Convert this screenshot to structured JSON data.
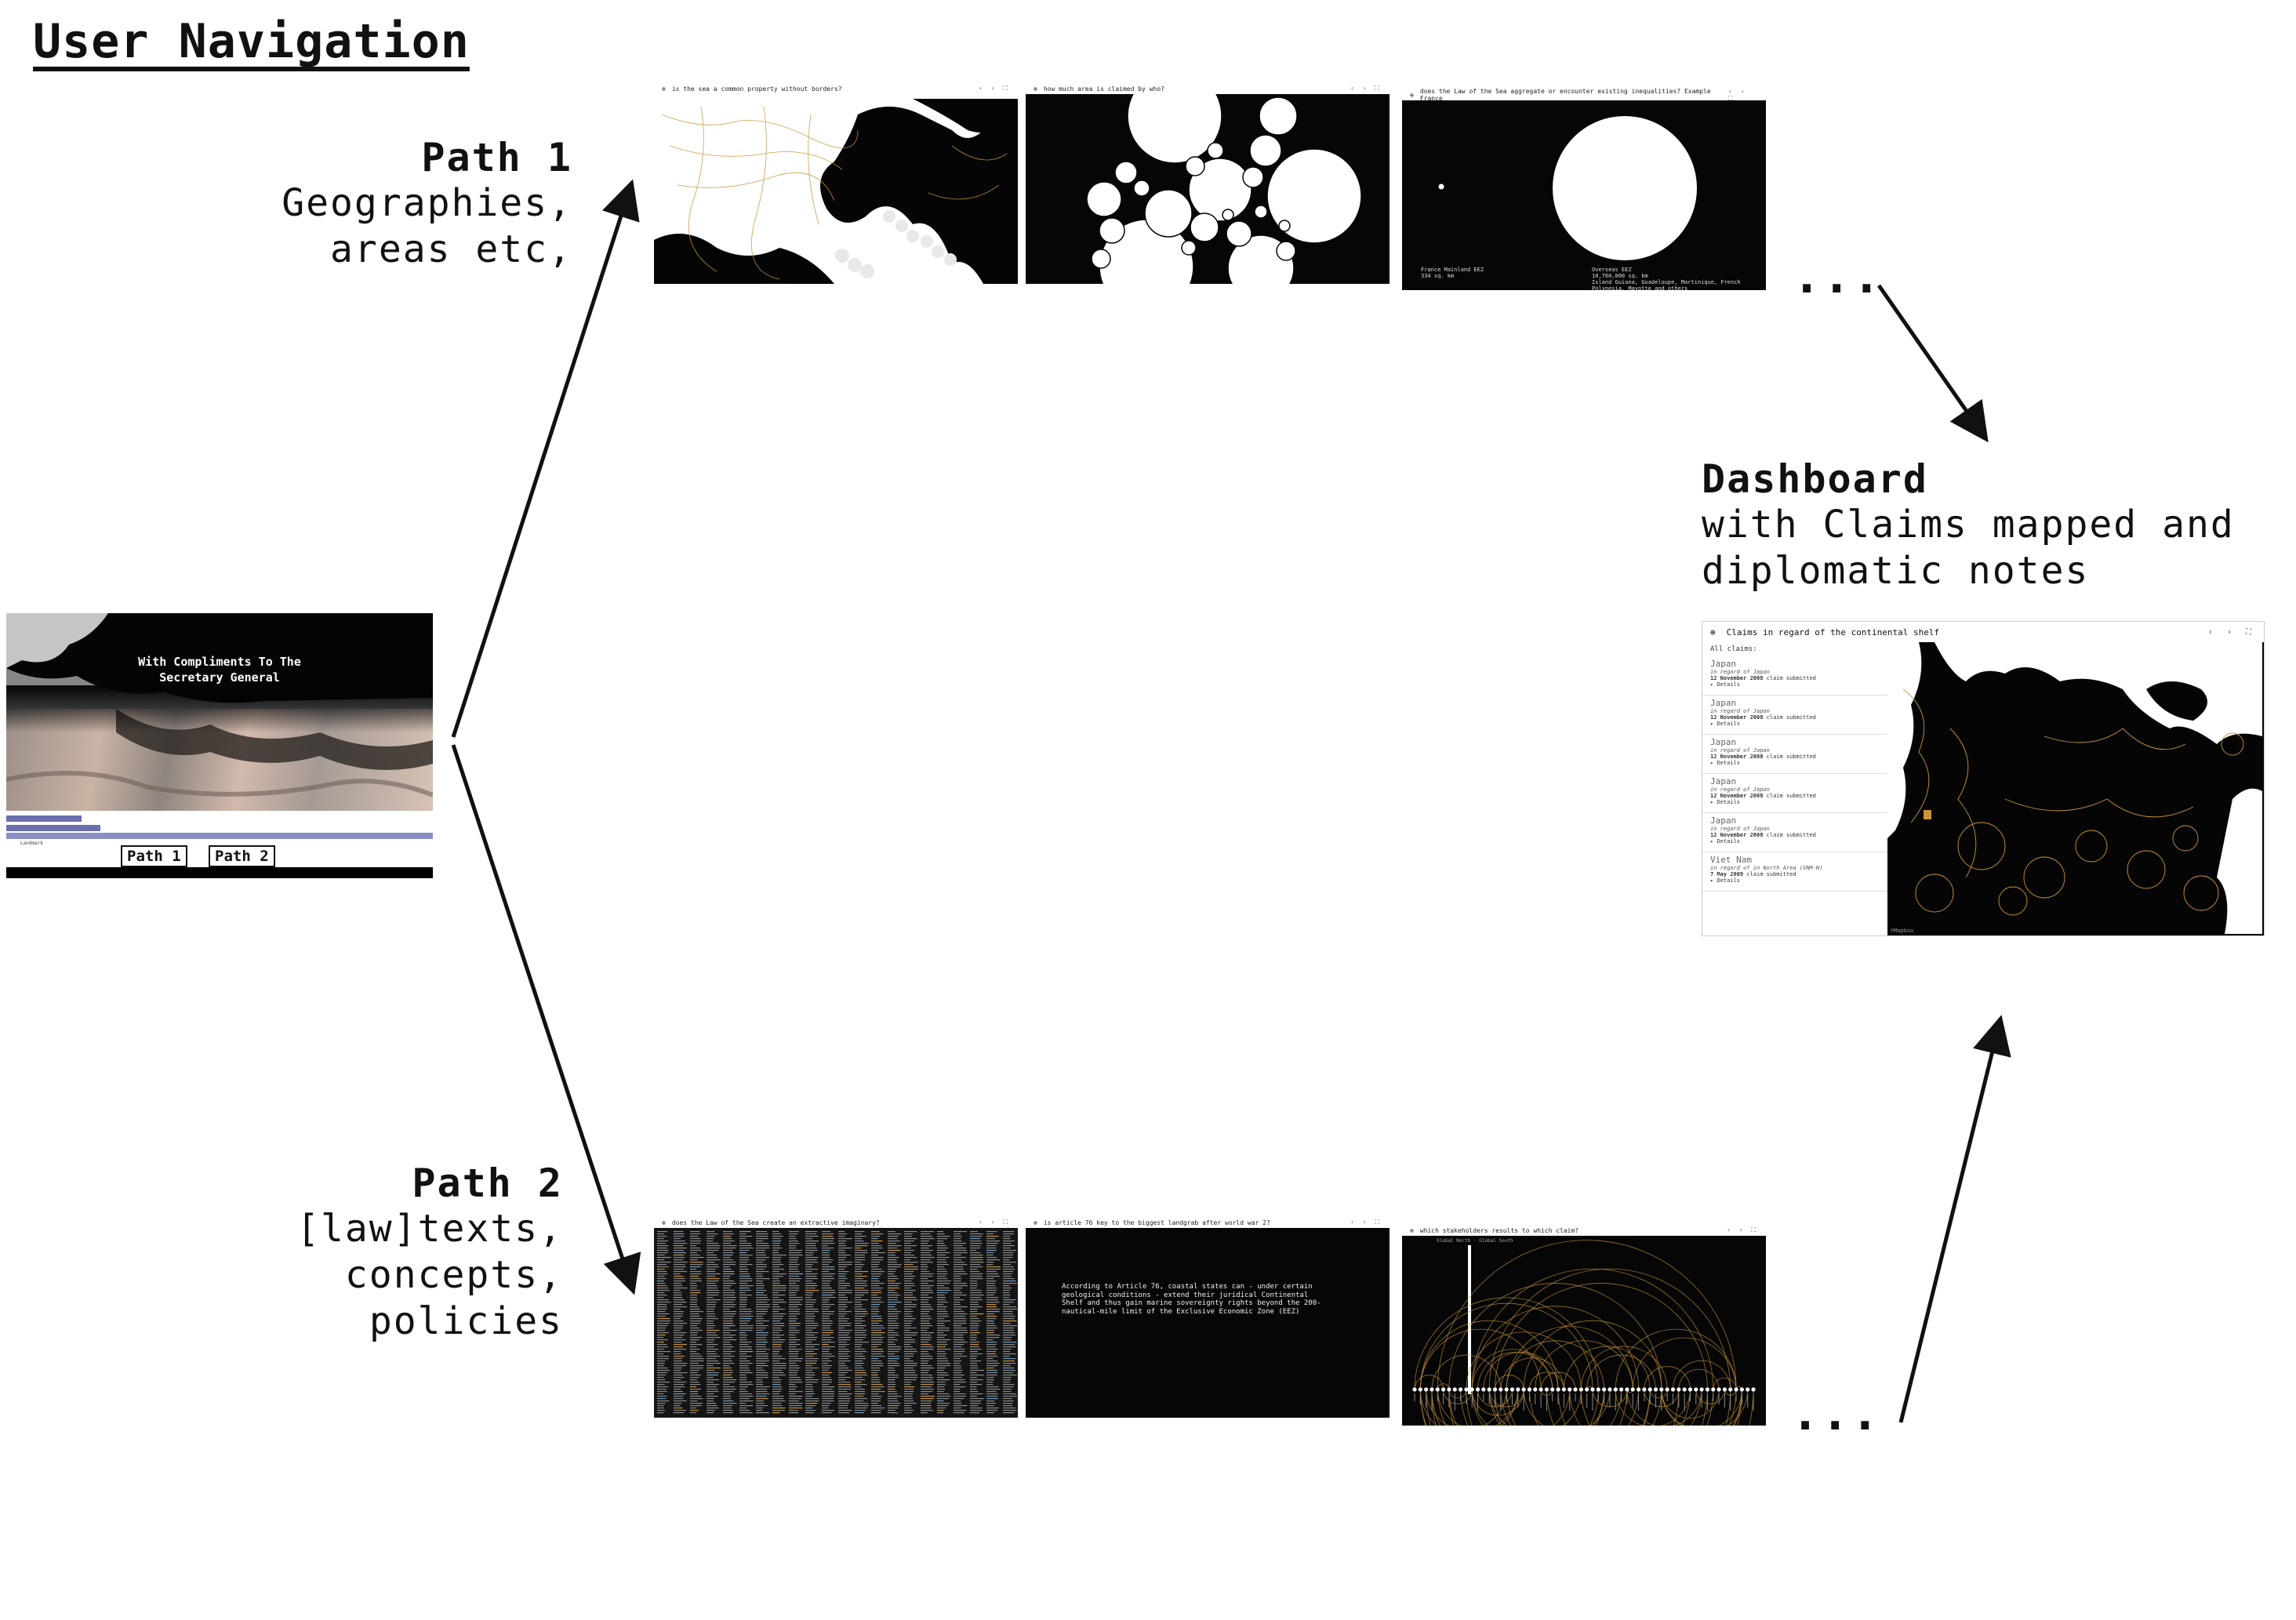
{
  "title": "User Navigation",
  "path1": {
    "heading": "Path 1",
    "description": "Geographies,\nareas etc,"
  },
  "path2": {
    "heading": "Path 2",
    "description": "[law]texts,\nconcepts,\npolicies"
  },
  "dashboard_label": {
    "heading": "Dashboard",
    "description": "with Claims mapped and\ndiplomatic notes"
  },
  "ellipsis": "...",
  "landing": {
    "title": "With Compliments To The\nSecretary General",
    "btn_path1": "Path 1",
    "btn_path2": "Path 2",
    "small_text": "Landmark"
  },
  "screens_path1": [
    {
      "caption": "is the sea a common property without borders?"
    },
    {
      "caption": "how much area is claimed by who?"
    },
    {
      "caption": "does the Law of the Sea aggregate or encounter existing inequalities? Example France",
      "left_stat": "France Mainland EEZ\n334 sq. km",
      "right_stat": "Overseas EEZ\n10,760,000 sq. km\nIsland Guiana, Guadeloupe, Martinique, French\nPolynesia, Mayotte and others"
    }
  ],
  "screens_path2": [
    {
      "caption": "does the Law of the Sea create an extractive imaginary?"
    },
    {
      "caption": "is article 76 key to the biggest landgrab after world war 2?",
      "body": "According to Article 76, coastal states can - under certain\ngeological conditions - extend their juridical Continental\nShelf and thus gain marine sovereignty rights beyond the 200-\nnautical-mile limit of the Exclusive Economic Zone (EEZ)"
    },
    {
      "caption": "which stakeholders results to which claim?",
      "tab": "Global North  ·  Global South"
    }
  ],
  "dashboard": {
    "title": "Claims in regard of the continental shelf",
    "all_claims": "All claims:",
    "claims": [
      {
        "country": "Japan",
        "regard": "in regard of Japan",
        "date": "12 November 2008",
        "status": "claim submitted",
        "details": "▸ Details"
      },
      {
        "country": "Japan",
        "regard": "in regard of Japan",
        "date": "12 November 2008",
        "status": "claim submitted",
        "details": "▸ Details"
      },
      {
        "country": "Japan",
        "regard": "in regard of Japan",
        "date": "12 November 2008",
        "status": "claim submitted",
        "details": "▸ Details"
      },
      {
        "country": "Japan",
        "regard": "in regard of Japan",
        "date": "12 November 2008",
        "status": "claim submitted",
        "details": "▸ Details"
      },
      {
        "country": "Japan",
        "regard": "in regard of Japan",
        "date": "12 November 2008",
        "status": "claim submitted",
        "details": "▸ Details"
      },
      {
        "country": "Viet Nam",
        "regard": "in regard of in North Area (VNM-N)",
        "date": "7 May 2009",
        "status": "claim submitted",
        "details": "▸ Details"
      }
    ],
    "map_credit": "©Mapbox"
  },
  "colors": {
    "accent_gold": "#c9953a",
    "nav_stripe": "#6a6fae",
    "ink": "#111111"
  }
}
